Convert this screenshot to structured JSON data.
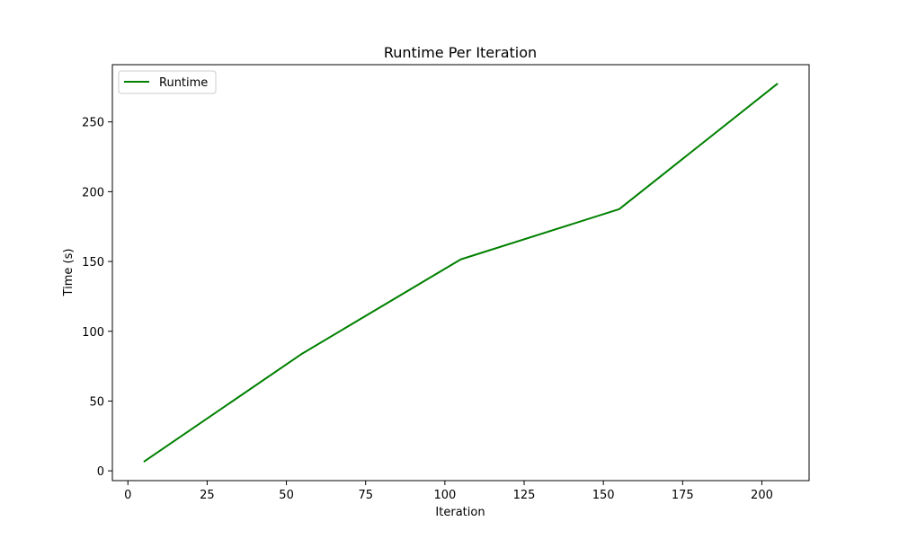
{
  "chart_data": {
    "type": "line",
    "title": "Runtime Per Iteration",
    "xlabel": "Iteration",
    "ylabel": "Time (s)",
    "x": [
      5,
      55,
      105,
      155,
      205
    ],
    "series": [
      {
        "name": "Runtime",
        "values": [
          6.5,
          84,
          151.5,
          187.5,
          277.5
        ],
        "color": "#008000"
      }
    ],
    "xlim": [
      -4.9,
      214.9
    ],
    "ylim": [
      -7,
      291
    ],
    "xticks": [
      0,
      25,
      50,
      75,
      100,
      125,
      150,
      175,
      200
    ],
    "yticks": [
      0,
      50,
      100,
      150,
      200,
      250
    ],
    "grid": false,
    "legend": "upper-left"
  }
}
